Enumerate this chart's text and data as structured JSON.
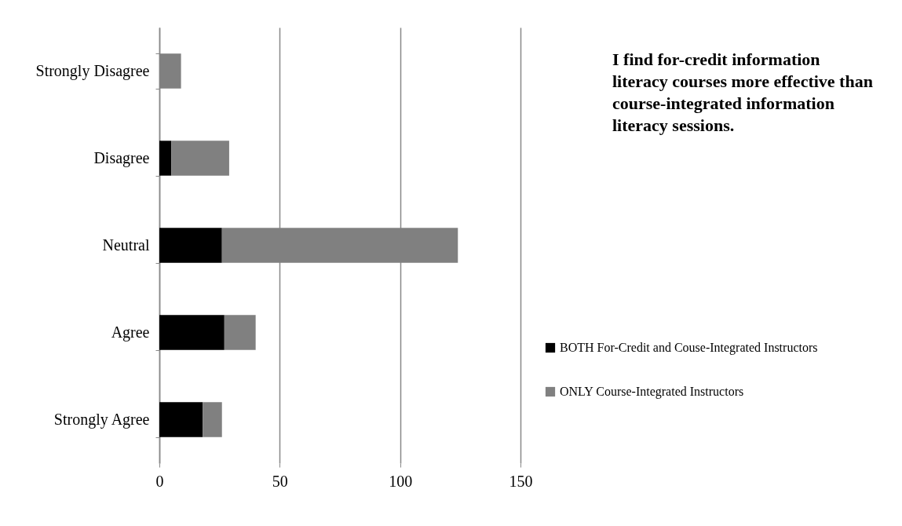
{
  "chart_data": {
    "type": "bar",
    "orientation": "horizontal",
    "stacked": true,
    "categories": [
      "Strongly Disagree",
      "Disagree",
      "Neutral",
      "Agree",
      "Strongly Agree"
    ],
    "series": [
      {
        "name": "BOTH For-Credit and Couse-Integrated Instructors",
        "color": "#000000",
        "values": [
          0,
          5,
          26,
          27,
          18
        ]
      },
      {
        "name": "ONLY Course-Integrated Instructors",
        "color": "#808080",
        "values": [
          9,
          24,
          98,
          13,
          8
        ]
      }
    ],
    "xlim": [
      0,
      150
    ],
    "xticks": [
      0,
      50,
      100,
      150
    ],
    "grid": "x",
    "legend": "right",
    "annotations": [
      "I find for-credit information literacy courses more effective than course-integrated information literacy sessions."
    ]
  }
}
